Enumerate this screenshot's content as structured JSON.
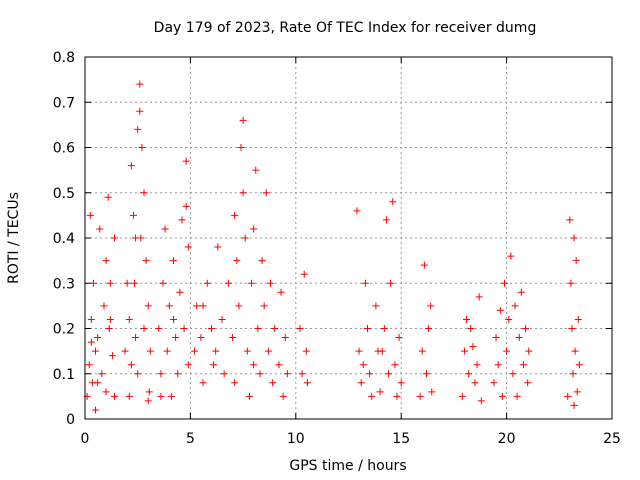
{
  "chart_data": {
    "type": "scatter",
    "title": "Day 179 of 2023, Rate Of TEC Index for receiver dumg",
    "xlabel": "GPS time / hours",
    "ylabel": "ROTI / TECUs",
    "xlim": [
      0,
      25
    ],
    "ylim": [
      0,
      0.8
    ],
    "x_ticks": [
      "0",
      "5",
      "10",
      "15",
      "20",
      "25"
    ],
    "y_ticks": [
      "0",
      "0.1",
      "0.2",
      "0.3",
      "0.4",
      "0.5",
      "0.6",
      "0.7",
      "0.8"
    ],
    "grid": true,
    "marker": "+",
    "color": "#ff0000",
    "series": [
      {
        "points": [
          [
            0.1,
            0.05
          ],
          [
            0.2,
            0.12
          ],
          [
            0.25,
            0.45
          ],
          [
            0.3,
            0.22
          ],
          [
            0.35,
            0.08
          ],
          [
            0.4,
            0.3
          ],
          [
            0.5,
            0.15
          ],
          [
            0.5,
            0.02
          ],
          [
            0.6,
            0.18
          ],
          [
            0.7,
            0.42
          ],
          [
            0.8,
            0.1
          ],
          [
            0.9,
            0.25
          ],
          [
            1.0,
            0.35
          ],
          [
            1.0,
            0.06
          ],
          [
            1.1,
            0.49
          ],
          [
            1.15,
            0.2
          ],
          [
            1.2,
            0.3
          ],
          [
            1.3,
            0.14
          ],
          [
            1.4,
            0.4
          ],
          [
            1.4,
            0.05
          ],
          [
            1.2,
            0.22
          ],
          [
            0.6,
            0.08
          ],
          [
            0.3,
            0.17
          ],
          [
            1.9,
            0.15
          ],
          [
            2.0,
            0.3
          ],
          [
            2.1,
            0.22
          ],
          [
            2.1,
            0.05
          ],
          [
            2.2,
            0.56
          ],
          [
            2.3,
            0.45
          ],
          [
            2.35,
            0.3
          ],
          [
            2.4,
            0.18
          ],
          [
            2.5,
            0.1
          ],
          [
            2.5,
            0.64
          ],
          [
            2.6,
            0.74
          ],
          [
            2.6,
            0.68
          ],
          [
            2.65,
            0.4
          ],
          [
            2.7,
            0.6
          ],
          [
            2.8,
            0.5
          ],
          [
            2.9,
            0.35
          ],
          [
            3.0,
            0.25
          ],
          [
            3.0,
            0.04
          ],
          [
            3.1,
            0.15
          ],
          [
            2.8,
            0.2
          ],
          [
            2.4,
            0.4
          ],
          [
            2.2,
            0.12
          ],
          [
            3.05,
            0.06
          ],
          [
            3.5,
            0.2
          ],
          [
            3.6,
            0.1
          ],
          [
            3.7,
            0.3
          ],
          [
            3.8,
            0.42
          ],
          [
            3.9,
            0.15
          ],
          [
            4.0,
            0.25
          ],
          [
            4.1,
            0.05
          ],
          [
            4.2,
            0.35
          ],
          [
            4.3,
            0.18
          ],
          [
            4.4,
            0.1
          ],
          [
            4.5,
            0.28
          ],
          [
            4.6,
            0.44
          ],
          [
            4.7,
            0.2
          ],
          [
            4.8,
            0.57
          ],
          [
            4.8,
            0.47
          ],
          [
            4.9,
            0.38
          ],
          [
            4.9,
            0.12
          ],
          [
            3.6,
            0.05
          ],
          [
            4.2,
            0.22
          ],
          [
            5.2,
            0.15
          ],
          [
            5.3,
            0.25
          ],
          [
            5.5,
            0.18
          ],
          [
            5.6,
            0.08
          ],
          [
            5.8,
            0.3
          ],
          [
            6.0,
            0.2
          ],
          [
            6.1,
            0.12
          ],
          [
            6.3,
            0.38
          ],
          [
            6.5,
            0.22
          ],
          [
            6.6,
            0.1
          ],
          [
            6.8,
            0.3
          ],
          [
            7.0,
            0.18
          ],
          [
            7.1,
            0.45
          ],
          [
            7.2,
            0.35
          ],
          [
            7.3,
            0.25
          ],
          [
            7.4,
            0.6
          ],
          [
            7.5,
            0.66
          ],
          [
            7.5,
            0.5
          ],
          [
            7.6,
            0.4
          ],
          [
            7.7,
            0.15
          ],
          [
            7.8,
            0.05
          ],
          [
            7.9,
            0.3
          ],
          [
            8.0,
            0.42
          ],
          [
            8.1,
            0.55
          ],
          [
            8.2,
            0.2
          ],
          [
            8.3,
            0.1
          ],
          [
            8.4,
            0.35
          ],
          [
            8.5,
            0.25
          ],
          [
            8.6,
            0.5
          ],
          [
            8.7,
            0.15
          ],
          [
            8.8,
            0.3
          ],
          [
            8.9,
            0.08
          ],
          [
            9.0,
            0.2
          ],
          [
            9.2,
            0.12
          ],
          [
            9.3,
            0.28
          ],
          [
            9.4,
            0.05
          ],
          [
            9.5,
            0.18
          ],
          [
            9.6,
            0.1
          ],
          [
            5.6,
            0.25
          ],
          [
            6.2,
            0.15
          ],
          [
            7.1,
            0.08
          ],
          [
            8.0,
            0.12
          ],
          [
            10.2,
            0.2
          ],
          [
            10.3,
            0.1
          ],
          [
            10.4,
            0.32
          ],
          [
            10.5,
            0.15
          ],
          [
            10.55,
            0.08
          ],
          [
            12.9,
            0.46
          ],
          [
            13.0,
            0.15
          ],
          [
            13.1,
            0.08
          ],
          [
            13.3,
            0.3
          ],
          [
            13.4,
            0.2
          ],
          [
            13.5,
            0.1
          ],
          [
            13.6,
            0.05
          ],
          [
            13.8,
            0.25
          ],
          [
            13.9,
            0.15
          ],
          [
            14.0,
            0.06
          ],
          [
            14.2,
            0.2
          ],
          [
            14.3,
            0.44
          ],
          [
            14.4,
            0.1
          ],
          [
            14.5,
            0.3
          ],
          [
            14.6,
            0.48
          ],
          [
            14.7,
            0.12
          ],
          [
            14.8,
            0.05
          ],
          [
            14.9,
            0.18
          ],
          [
            15.0,
            0.08
          ],
          [
            13.2,
            0.12
          ],
          [
            14.1,
            0.15
          ],
          [
            15.9,
            0.05
          ],
          [
            16.0,
            0.15
          ],
          [
            16.1,
            0.34
          ],
          [
            16.2,
            0.1
          ],
          [
            16.3,
            0.2
          ],
          [
            16.4,
            0.25
          ],
          [
            16.45,
            0.06
          ],
          [
            17.9,
            0.05
          ],
          [
            18.0,
            0.15
          ],
          [
            18.1,
            0.22
          ],
          [
            18.2,
            0.1
          ],
          [
            18.3,
            0.2
          ],
          [
            18.5,
            0.08
          ],
          [
            18.6,
            0.12
          ],
          [
            18.7,
            0.27
          ],
          [
            18.8,
            0.04
          ],
          [
            18.4,
            0.16
          ],
          [
            19.4,
            0.08
          ],
          [
            19.5,
            0.18
          ],
          [
            19.6,
            0.12
          ],
          [
            19.7,
            0.24
          ],
          [
            19.8,
            0.05
          ],
          [
            19.9,
            0.3
          ],
          [
            20.0,
            0.15
          ],
          [
            20.1,
            0.22
          ],
          [
            20.2,
            0.36
          ],
          [
            20.3,
            0.1
          ],
          [
            20.4,
            0.25
          ],
          [
            20.5,
            0.05
          ],
          [
            20.6,
            0.18
          ],
          [
            20.7,
            0.28
          ],
          [
            20.8,
            0.12
          ],
          [
            20.9,
            0.2
          ],
          [
            21.0,
            0.08
          ],
          [
            21.05,
            0.15
          ],
          [
            22.9,
            0.05
          ],
          [
            23.0,
            0.44
          ],
          [
            23.05,
            0.3
          ],
          [
            23.1,
            0.2
          ],
          [
            23.15,
            0.1
          ],
          [
            23.2,
            0.4
          ],
          [
            23.25,
            0.15
          ],
          [
            23.3,
            0.35
          ],
          [
            23.35,
            0.06
          ],
          [
            23.4,
            0.22
          ],
          [
            23.45,
            0.12
          ],
          [
            23.2,
            0.03
          ]
        ]
      }
    ]
  }
}
